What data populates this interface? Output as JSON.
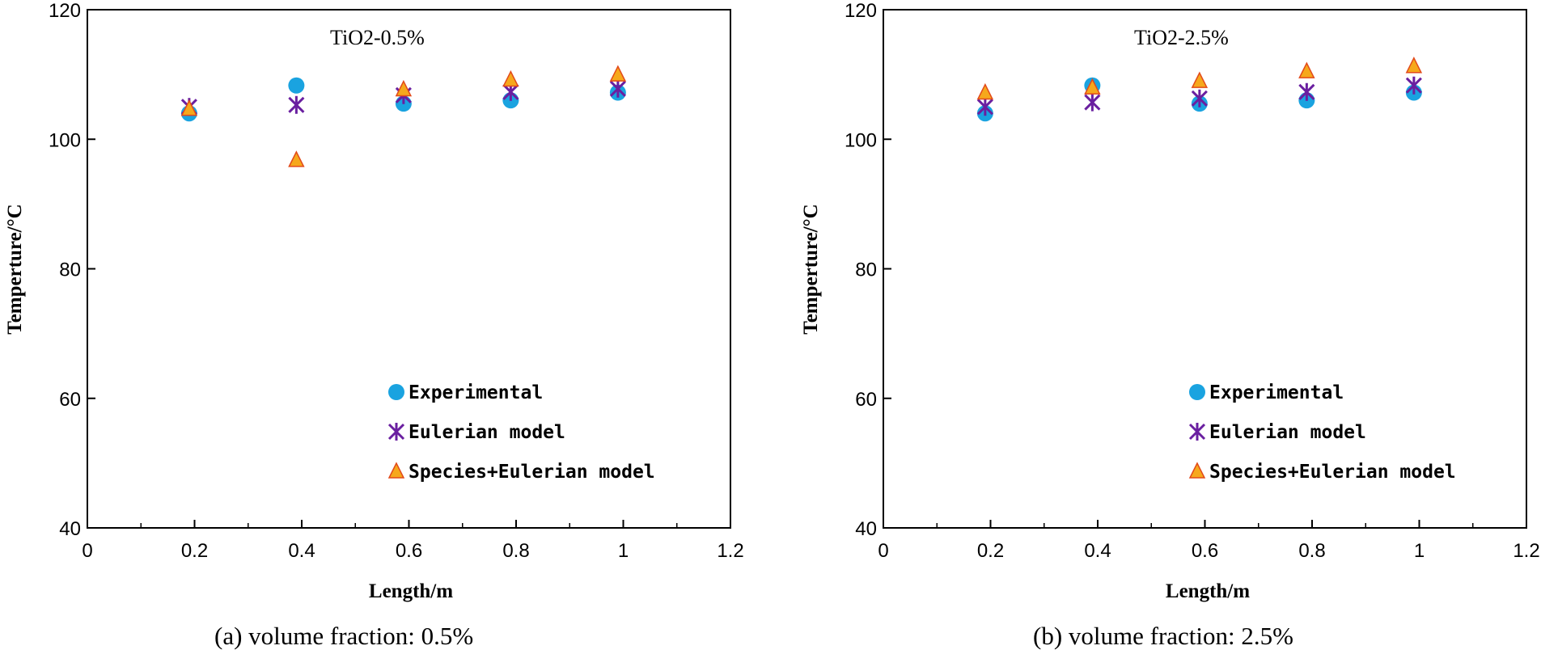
{
  "colors": {
    "experimental": "#1aa3e0",
    "eulerian": "#6a1fa0",
    "species": "#f6a81c",
    "species_edge": "#e24a1a"
  },
  "chart_data": [
    {
      "type": "scatter",
      "title": "TiO2-0.5%",
      "caption": "(a)  volume fraction: 0.5%",
      "xlabel": "Length/m",
      "ylabel": "Temperture/°C",
      "xlim": [
        0,
        1.2
      ],
      "ylim": [
        40,
        120
      ],
      "xticks": [
        0,
        0.2,
        0.4,
        0.6,
        0.8,
        1,
        1.2
      ],
      "xtick_labels": [
        "0",
        "0.2",
        "0.4",
        "0.6",
        "0.8",
        "1",
        "1.2"
      ],
      "yticks": [
        40,
        60,
        80,
        100,
        120
      ],
      "ytick_labels": [
        "40",
        "60",
        "80",
        "100",
        "120"
      ],
      "legend_position": "lower-right",
      "series": [
        {
          "name": "Experimental",
          "marker": "circle",
          "x": [
            0.19,
            0.39,
            0.59,
            0.79,
            0.99
          ],
          "y": [
            104.0,
            108.3,
            105.5,
            106.0,
            107.2
          ]
        },
        {
          "name": "Eulerian model",
          "marker": "star",
          "x": [
            0.19,
            0.39,
            0.59,
            0.79,
            0.99
          ],
          "y": [
            105.0,
            105.3,
            106.8,
            107.3,
            107.8
          ]
        },
        {
          "name": "Species+Eulerian model",
          "marker": "triangle",
          "x": [
            0.19,
            0.39,
            0.59,
            0.79,
            0.99
          ],
          "y": [
            104.7,
            96.8,
            107.7,
            109.2,
            110.0
          ]
        }
      ]
    },
    {
      "type": "scatter",
      "title": "TiO2-2.5%",
      "caption": "(b) volume fraction: 2.5%",
      "xlabel": "Length/m",
      "ylabel": "Temperture/°C",
      "xlim": [
        0,
        1.2
      ],
      "ylim": [
        40,
        120
      ],
      "xticks": [
        0,
        0.2,
        0.4,
        0.6,
        0.8,
        1,
        1.2
      ],
      "xtick_labels": [
        "0",
        "0.2",
        "0.4",
        "0.6",
        "0.8",
        "1",
        "1.2"
      ],
      "yticks": [
        40,
        60,
        80,
        100,
        120
      ],
      "ytick_labels": [
        "40",
        "60",
        "80",
        "100",
        "120"
      ],
      "legend_position": "lower-right",
      "series": [
        {
          "name": "Experimental",
          "marker": "circle",
          "x": [
            0.19,
            0.39,
            0.59,
            0.79,
            0.99
          ],
          "y": [
            104.0,
            108.3,
            105.5,
            106.0,
            107.2
          ]
        },
        {
          "name": "Eulerian model",
          "marker": "star",
          "x": [
            0.19,
            0.39,
            0.59,
            0.79,
            0.99
          ],
          "y": [
            105.0,
            105.7,
            106.3,
            107.3,
            108.3
          ]
        },
        {
          "name": "Species+Eulerian model",
          "marker": "triangle",
          "x": [
            0.19,
            0.39,
            0.59,
            0.79,
            0.99
          ],
          "y": [
            107.2,
            108.0,
            109.0,
            110.5,
            111.3
          ]
        }
      ]
    }
  ]
}
